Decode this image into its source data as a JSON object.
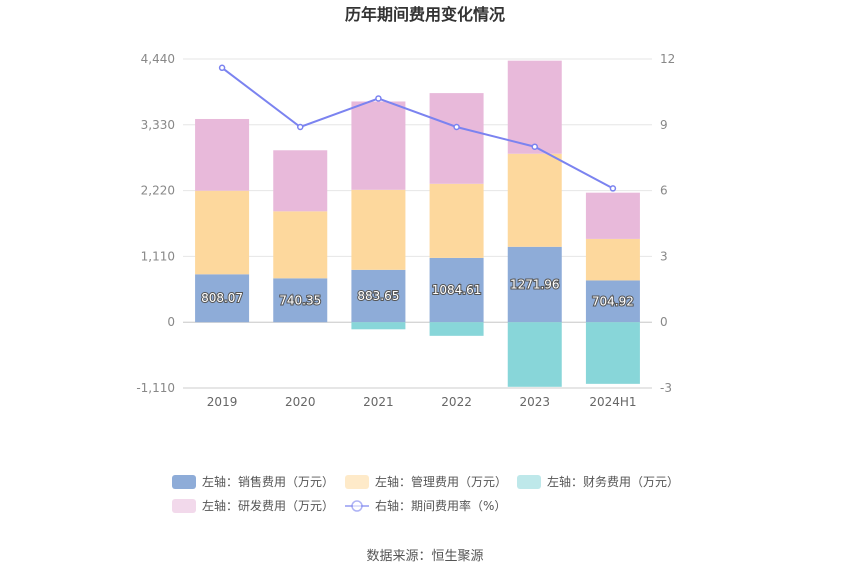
{
  "chart_data": {
    "type": "bar",
    "title": "历年期间费用变化情况",
    "categories": [
      "2019",
      "2020",
      "2021",
      "2022",
      "2023",
      "2024H1"
    ],
    "left_axis": {
      "ylim": [
        -1110,
        4440
      ],
      "ticks": [
        "-1,110",
        "0",
        "1,110",
        "2,220",
        "3,330",
        "4,440"
      ]
    },
    "right_axis": {
      "ylim": [
        -3,
        12
      ],
      "ticks": [
        "-3",
        "0",
        "3",
        "6",
        "9",
        "12"
      ]
    },
    "series": [
      {
        "name": "左轴：销售费用（万元）",
        "kind": "bar",
        "axis": "left",
        "stack": "pos",
        "color": "#8eacd8",
        "values": [
          808.07,
          740.35,
          883.65,
          1084.61,
          1271.96,
          704.92
        ],
        "show_labels": true
      },
      {
        "name": "左轴：管理费用（万元）",
        "kind": "bar",
        "axis": "left",
        "stack": "pos",
        "color": "#fdd89d",
        "values": [
          1410,
          1130,
          1350,
          1250,
          1570,
          700
        ]
      },
      {
        "name": "左轴：财务费用（万元）",
        "kind": "bar",
        "axis": "left",
        "stack": "neg",
        "color": "#88d6d9",
        "values": [
          0,
          0,
          -120,
          -230,
          -1090,
          -1040
        ]
      },
      {
        "name": "左轴：研发费用（万元）",
        "kind": "bar",
        "axis": "left",
        "stack": "pos",
        "color": "#e8b9da",
        "values": [
          1210,
          1030,
          1490,
          1530,
          1570,
          780
        ]
      },
      {
        "name": "右轴：期间费用率（%）",
        "kind": "line",
        "axis": "right",
        "color": "#7b83f0",
        "values": [
          11.6,
          8.9,
          10.2,
          8.9,
          8.0,
          6.1
        ]
      }
    ],
    "legend": [
      {
        "label": "左轴：销售费用（万元）",
        "color": "#8eacd8",
        "kind": "bar"
      },
      {
        "label": "左轴：管理费用（万元）",
        "color": "#fdd89d",
        "kind": "bar"
      },
      {
        "label": "左轴：财务费用（万元）",
        "color": "#88d6d9",
        "kind": "bar"
      },
      {
        "label": "左轴：研发费用（万元）",
        "color": "#e8b9da",
        "kind": "bar"
      },
      {
        "label": "右轴：期间费用率（%）",
        "color": "#7b83f0",
        "kind": "line"
      }
    ],
    "legend_position": "bottom",
    "grid": true
  },
  "footer": {
    "source": "数据来源：恒生聚源"
  }
}
